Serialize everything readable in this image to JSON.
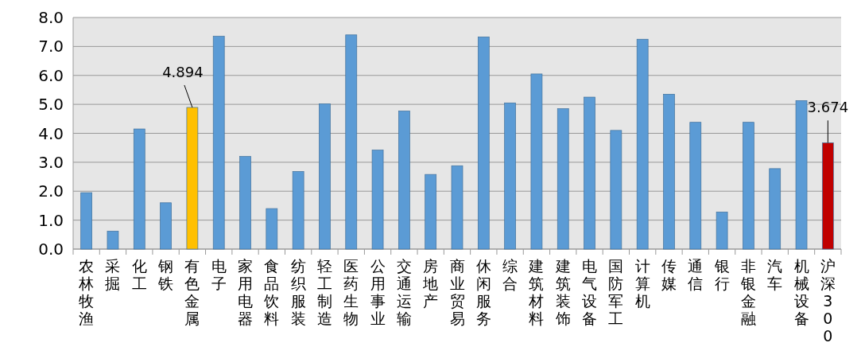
{
  "chart_data": {
    "type": "bar",
    "categories": [
      "农林牧渔",
      "采掘",
      "化工",
      "钢铁",
      "有色金属",
      "电子",
      "家用电器",
      "食品饮料",
      "纺织服装",
      "轻工制造",
      "医药生物",
      "公用事业",
      "交通运输",
      "房地产",
      "商业贸易",
      "休闲服务",
      "综合",
      "建筑材料",
      "建筑装饰",
      "电气设备",
      "国防军工",
      "计算机",
      "传媒",
      "通信",
      "银行",
      "非银金融",
      "汽车",
      "机械设备",
      "沪深300"
    ],
    "values": [
      1.95,
      0.62,
      4.15,
      1.6,
      4.894,
      7.35,
      3.2,
      1.4,
      2.68,
      5.02,
      7.4,
      3.42,
      4.77,
      2.58,
      2.88,
      7.33,
      5.05,
      6.05,
      4.85,
      5.25,
      4.1,
      7.25,
      5.35,
      4.38,
      1.28,
      4.38,
      2.78,
      5.13,
      3.674
    ],
    "colors": [
      "#5b9bd5",
      "#5b9bd5",
      "#5b9bd5",
      "#5b9bd5",
      "#ffc000",
      "#5b9bd5",
      "#5b9bd5",
      "#5b9bd5",
      "#5b9bd5",
      "#5b9bd5",
      "#5b9bd5",
      "#5b9bd5",
      "#5b9bd5",
      "#5b9bd5",
      "#5b9bd5",
      "#5b9bd5",
      "#5b9bd5",
      "#5b9bd5",
      "#5b9bd5",
      "#5b9bd5",
      "#5b9bd5",
      "#5b9bd5",
      "#5b9bd5",
      "#5b9bd5",
      "#5b9bd5",
      "#5b9bd5",
      "#5b9bd5",
      "#5b9bd5",
      "#c00000"
    ],
    "value_labels": [
      null,
      null,
      null,
      null,
      "4.894",
      null,
      null,
      null,
      null,
      null,
      null,
      null,
      null,
      null,
      null,
      null,
      null,
      null,
      null,
      null,
      null,
      null,
      null,
      null,
      null,
      null,
      null,
      null,
      "3.674"
    ],
    "ylim": [
      0,
      8
    ],
    "yticks": [
      {
        "value": 0,
        "label": "0.0"
      },
      {
        "value": 1,
        "label": "1.0"
      },
      {
        "value": 2,
        "label": "2.0"
      },
      {
        "value": 3,
        "label": "3.0"
      },
      {
        "value": 4,
        "label": "4.0"
      },
      {
        "value": 5,
        "label": "5.0"
      },
      {
        "value": 6,
        "label": "6.0"
      },
      {
        "value": 7,
        "label": "7.0"
      },
      {
        "value": 8,
        "label": "8.0"
      }
    ],
    "grid": "y"
  }
}
